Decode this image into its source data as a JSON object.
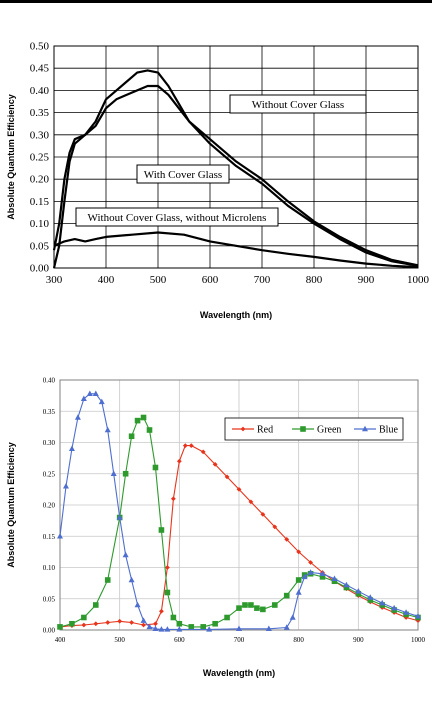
{
  "chart_data": [
    {
      "type": "line",
      "xlabel": "Wavelength (nm)",
      "ylabel": "Absolute Quantum Efficiency",
      "xlim": [
        300,
        1000
      ],
      "ylim": [
        0,
        0.5
      ],
      "xticks": [
        "300",
        "400",
        "500",
        "600",
        "700",
        "800",
        "900",
        "1000"
      ],
      "yticks": [
        "0.00",
        "0.05",
        "0.10",
        "0.15",
        "0.20",
        "0.25",
        "0.30",
        "0.35",
        "0.40",
        "0.45",
        "0.50"
      ],
      "grid": true,
      "annotations": [
        "Without Cover Glass",
        "With Cover Glass",
        "Without Cover Glass, without Microlens"
      ],
      "series": [
        {
          "name": "Without Cover Glass",
          "x": [
            300,
            310,
            320,
            330,
            340,
            360,
            380,
            400,
            420,
            440,
            460,
            480,
            500,
            520,
            540,
            560,
            600,
            650,
            700,
            750,
            800,
            850,
            900,
            950,
            1000
          ],
          "y": [
            0.0,
            0.05,
            0.15,
            0.24,
            0.28,
            0.3,
            0.33,
            0.38,
            0.4,
            0.42,
            0.44,
            0.445,
            0.44,
            0.41,
            0.37,
            0.33,
            0.28,
            0.23,
            0.19,
            0.14,
            0.1,
            0.065,
            0.035,
            0.015,
            0.005
          ]
        },
        {
          "name": "With Cover Glass",
          "x": [
            300,
            310,
            320,
            330,
            340,
            360,
            380,
            400,
            420,
            440,
            460,
            480,
            500,
            520,
            540,
            560,
            600,
            650,
            700,
            750,
            800,
            850,
            900,
            950,
            1000
          ],
          "y": [
            0.04,
            0.1,
            0.2,
            0.26,
            0.29,
            0.3,
            0.32,
            0.36,
            0.38,
            0.39,
            0.4,
            0.41,
            0.41,
            0.39,
            0.36,
            0.33,
            0.29,
            0.24,
            0.2,
            0.15,
            0.105,
            0.07,
            0.04,
            0.018,
            0.006
          ]
        },
        {
          "name": "Without Cover Glass, without Microlens",
          "x": [
            300,
            320,
            340,
            360,
            380,
            400,
            450,
            500,
            550,
            600,
            650,
            700,
            750,
            800,
            850,
            900,
            950,
            1000
          ],
          "y": [
            0.05,
            0.06,
            0.065,
            0.06,
            0.065,
            0.07,
            0.075,
            0.08,
            0.075,
            0.06,
            0.05,
            0.04,
            0.032,
            0.025,
            0.017,
            0.01,
            0.005,
            0.002
          ]
        }
      ]
    },
    {
      "type": "line",
      "xlabel": "Wavelength (nm)",
      "ylabel": "Absolute Quantum Efficiency",
      "xlim": [
        400,
        1000
      ],
      "ylim": [
        0,
        0.4
      ],
      "xticks": [
        "400",
        "500",
        "600",
        "700",
        "800",
        "900",
        "1000"
      ],
      "yticks": [
        "0.00",
        "0.05",
        "0.10",
        "0.15",
        "0.20",
        "0.25",
        "0.30",
        "0.35",
        "0.40"
      ],
      "grid": true,
      "legend": "top-right",
      "series": [
        {
          "name": "Red",
          "color": "#e8341c",
          "marker": "diamond",
          "x": [
            400,
            420,
            440,
            460,
            480,
            500,
            520,
            540,
            560,
            570,
            580,
            590,
            600,
            610,
            620,
            640,
            660,
            680,
            700,
            720,
            740,
            760,
            780,
            800,
            820,
            840,
            860,
            880,
            900,
            920,
            940,
            960,
            980,
            1000
          ],
          "y": [
            0.005,
            0.007,
            0.008,
            0.01,
            0.012,
            0.014,
            0.012,
            0.008,
            0.01,
            0.03,
            0.1,
            0.21,
            0.27,
            0.295,
            0.295,
            0.285,
            0.265,
            0.245,
            0.225,
            0.205,
            0.185,
            0.165,
            0.145,
            0.125,
            0.108,
            0.092,
            0.078,
            0.066,
            0.055,
            0.045,
            0.036,
            0.028,
            0.02,
            0.015
          ]
        },
        {
          "name": "Green",
          "color": "#2e9a2e",
          "marker": "square",
          "x": [
            400,
            420,
            440,
            460,
            480,
            500,
            510,
            520,
            530,
            540,
            550,
            560,
            570,
            580,
            590,
            600,
            620,
            640,
            660,
            680,
            700,
            710,
            720,
            730,
            740,
            760,
            780,
            800,
            810,
            820,
            840,
            860,
            880,
            900,
            920,
            940,
            960,
            980,
            1000
          ],
          "y": [
            0.005,
            0.01,
            0.02,
            0.04,
            0.08,
            0.18,
            0.25,
            0.31,
            0.335,
            0.34,
            0.32,
            0.26,
            0.16,
            0.06,
            0.02,
            0.01,
            0.005,
            0.005,
            0.01,
            0.02,
            0.035,
            0.04,
            0.04,
            0.035,
            0.033,
            0.04,
            0.055,
            0.08,
            0.088,
            0.09,
            0.085,
            0.078,
            0.068,
            0.058,
            0.048,
            0.04,
            0.032,
            0.025,
            0.02
          ]
        },
        {
          "name": "Blue",
          "color": "#4f6fd0",
          "marker": "triangle",
          "x": [
            400,
            410,
            420,
            430,
            440,
            450,
            460,
            470,
            480,
            490,
            500,
            510,
            520,
            530,
            540,
            550,
            560,
            570,
            580,
            600,
            650,
            700,
            750,
            780,
            790,
            800,
            810,
            820,
            840,
            860,
            880,
            900,
            920,
            940,
            960,
            980,
            1000
          ],
          "y": [
            0.15,
            0.23,
            0.29,
            0.34,
            0.37,
            0.378,
            0.378,
            0.365,
            0.32,
            0.25,
            0.18,
            0.12,
            0.08,
            0.04,
            0.015,
            0.005,
            0.002,
            0.001,
            0.001,
            0.001,
            0.001,
            0.002,
            0.002,
            0.004,
            0.02,
            0.06,
            0.085,
            0.092,
            0.09,
            0.082,
            0.072,
            0.062,
            0.052,
            0.043,
            0.035,
            0.028,
            0.022
          ]
        }
      ]
    }
  ]
}
